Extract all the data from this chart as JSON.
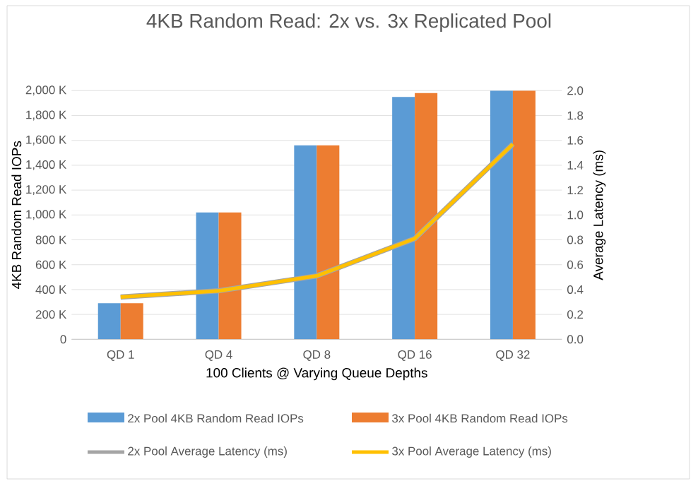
{
  "chart_data": {
    "type": "bar",
    "title": "4KB Random Read: 2x vs. 3x Replicated Pool",
    "xlabel": "100 Clients @ Varying Queue Depths",
    "ylabel": "4KB Random Read IOPs",
    "y2label": "Average Latency (ms)",
    "categories": [
      "QD 1",
      "QD 4",
      "QD 8",
      "QD 16",
      "QD 32"
    ],
    "series": [
      {
        "name": "2x  Pool 4KB Random Read IOPs",
        "color": "#5b9bd5",
        "values": [
          290000,
          1020000,
          1560000,
          1950000,
          2000000
        ]
      },
      {
        "name": "3x Pool 4KB Random Read IOPs",
        "color": "#ed7d31",
        "values": [
          290000,
          1020000,
          1560000,
          1980000,
          2000000
        ]
      },
      {
        "name": "2x  Pool Average Latency (ms)",
        "type": "line",
        "axis": "y2",
        "color": "#a5a5a5",
        "values": [
          0.34,
          0.39,
          0.51,
          0.81,
          1.57
        ]
      },
      {
        "name": "3x Pool Average Latency (ms)",
        "type": "line",
        "axis": "y2",
        "color": "#ffc000",
        "values": [
          0.34,
          0.39,
          0.51,
          0.81,
          1.57
        ]
      }
    ],
    "ylim": [
      0,
      2000000
    ],
    "yticks": [
      {
        "value": 0,
        "label": "0"
      },
      {
        "value": 200000,
        "label": "200 K"
      },
      {
        "value": 400000,
        "label": "400 K"
      },
      {
        "value": 600000,
        "label": "600 K"
      },
      {
        "value": 800000,
        "label": "800 K"
      },
      {
        "value": 1000000,
        "label": "1,000 K"
      },
      {
        "value": 1200000,
        "label": "1,200 K"
      },
      {
        "value": 1400000,
        "label": "1,400 K"
      },
      {
        "value": 1600000,
        "label": "1,600 K"
      },
      {
        "value": 1800000,
        "label": "1,800 K"
      },
      {
        "value": 2000000,
        "label": "2,000 K"
      }
    ],
    "y2lim": [
      0,
      2
    ],
    "y2ticks": [
      {
        "value": 0,
        "label": "0.0"
      },
      {
        "value": 0.2,
        "label": "0.2"
      },
      {
        "value": 0.4,
        "label": "0.4"
      },
      {
        "value": 0.6,
        "label": "0.6"
      },
      {
        "value": 0.8,
        "label": "0.8"
      },
      {
        "value": 1,
        "label": "1.0"
      },
      {
        "value": 1.2,
        "label": "1.2"
      },
      {
        "value": 1.4,
        "label": "1.4"
      },
      {
        "value": 1.6,
        "label": "1.6"
      },
      {
        "value": 1.8,
        "label": "1.8"
      },
      {
        "value": 2,
        "label": "2.0"
      }
    ],
    "grid": "y",
    "legend": "bottom",
    "marker": "none",
    "line_style": "solid"
  }
}
